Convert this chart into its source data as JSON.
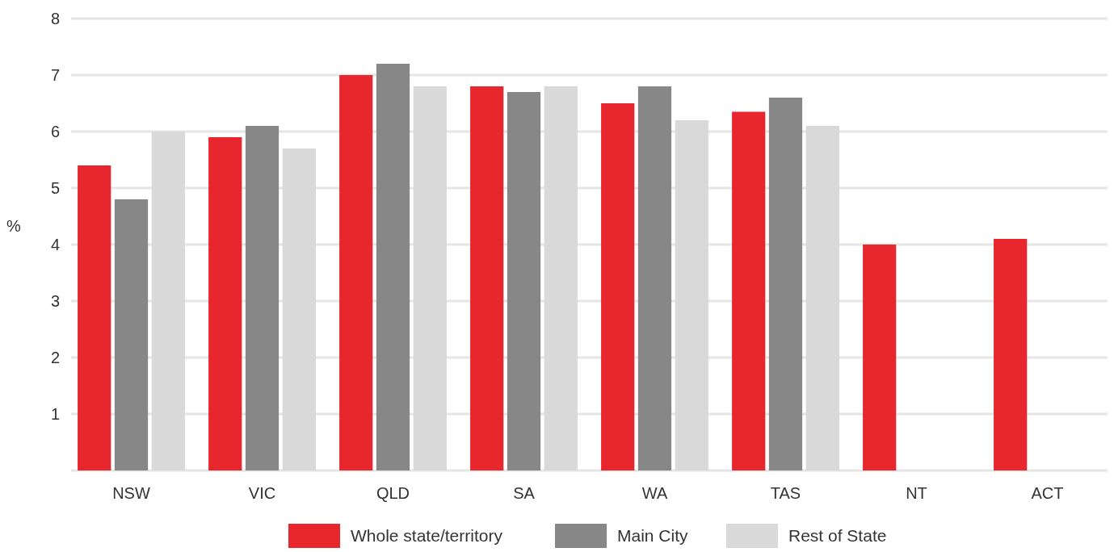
{
  "chart_data": {
    "type": "bar",
    "ylabel": "%",
    "categories": [
      "NSW",
      "VIC",
      "QLD",
      "SA",
      "WA",
      "TAS",
      "NT",
      "ACT"
    ],
    "series": [
      {
        "name": "Whole state/territory",
        "color": "#e8262d",
        "values": [
          5.4,
          5.9,
          7.0,
          6.8,
          6.5,
          6.35,
          4.0,
          4.1
        ]
      },
      {
        "name": "Main City",
        "color": "#878787",
        "values": [
          4.8,
          6.1,
          7.2,
          6.7,
          6.8,
          6.6,
          null,
          null
        ]
      },
      {
        "name": "Rest of State",
        "color": "#d9d9d9",
        "values": [
          6.0,
          5.7,
          6.8,
          6.8,
          6.2,
          6.1,
          null,
          null
        ]
      }
    ],
    "ylim": [
      0,
      8
    ],
    "yticks": [
      1,
      2,
      3,
      4,
      5,
      6,
      7,
      8
    ],
    "grid": "y",
    "legend": "bottom"
  }
}
